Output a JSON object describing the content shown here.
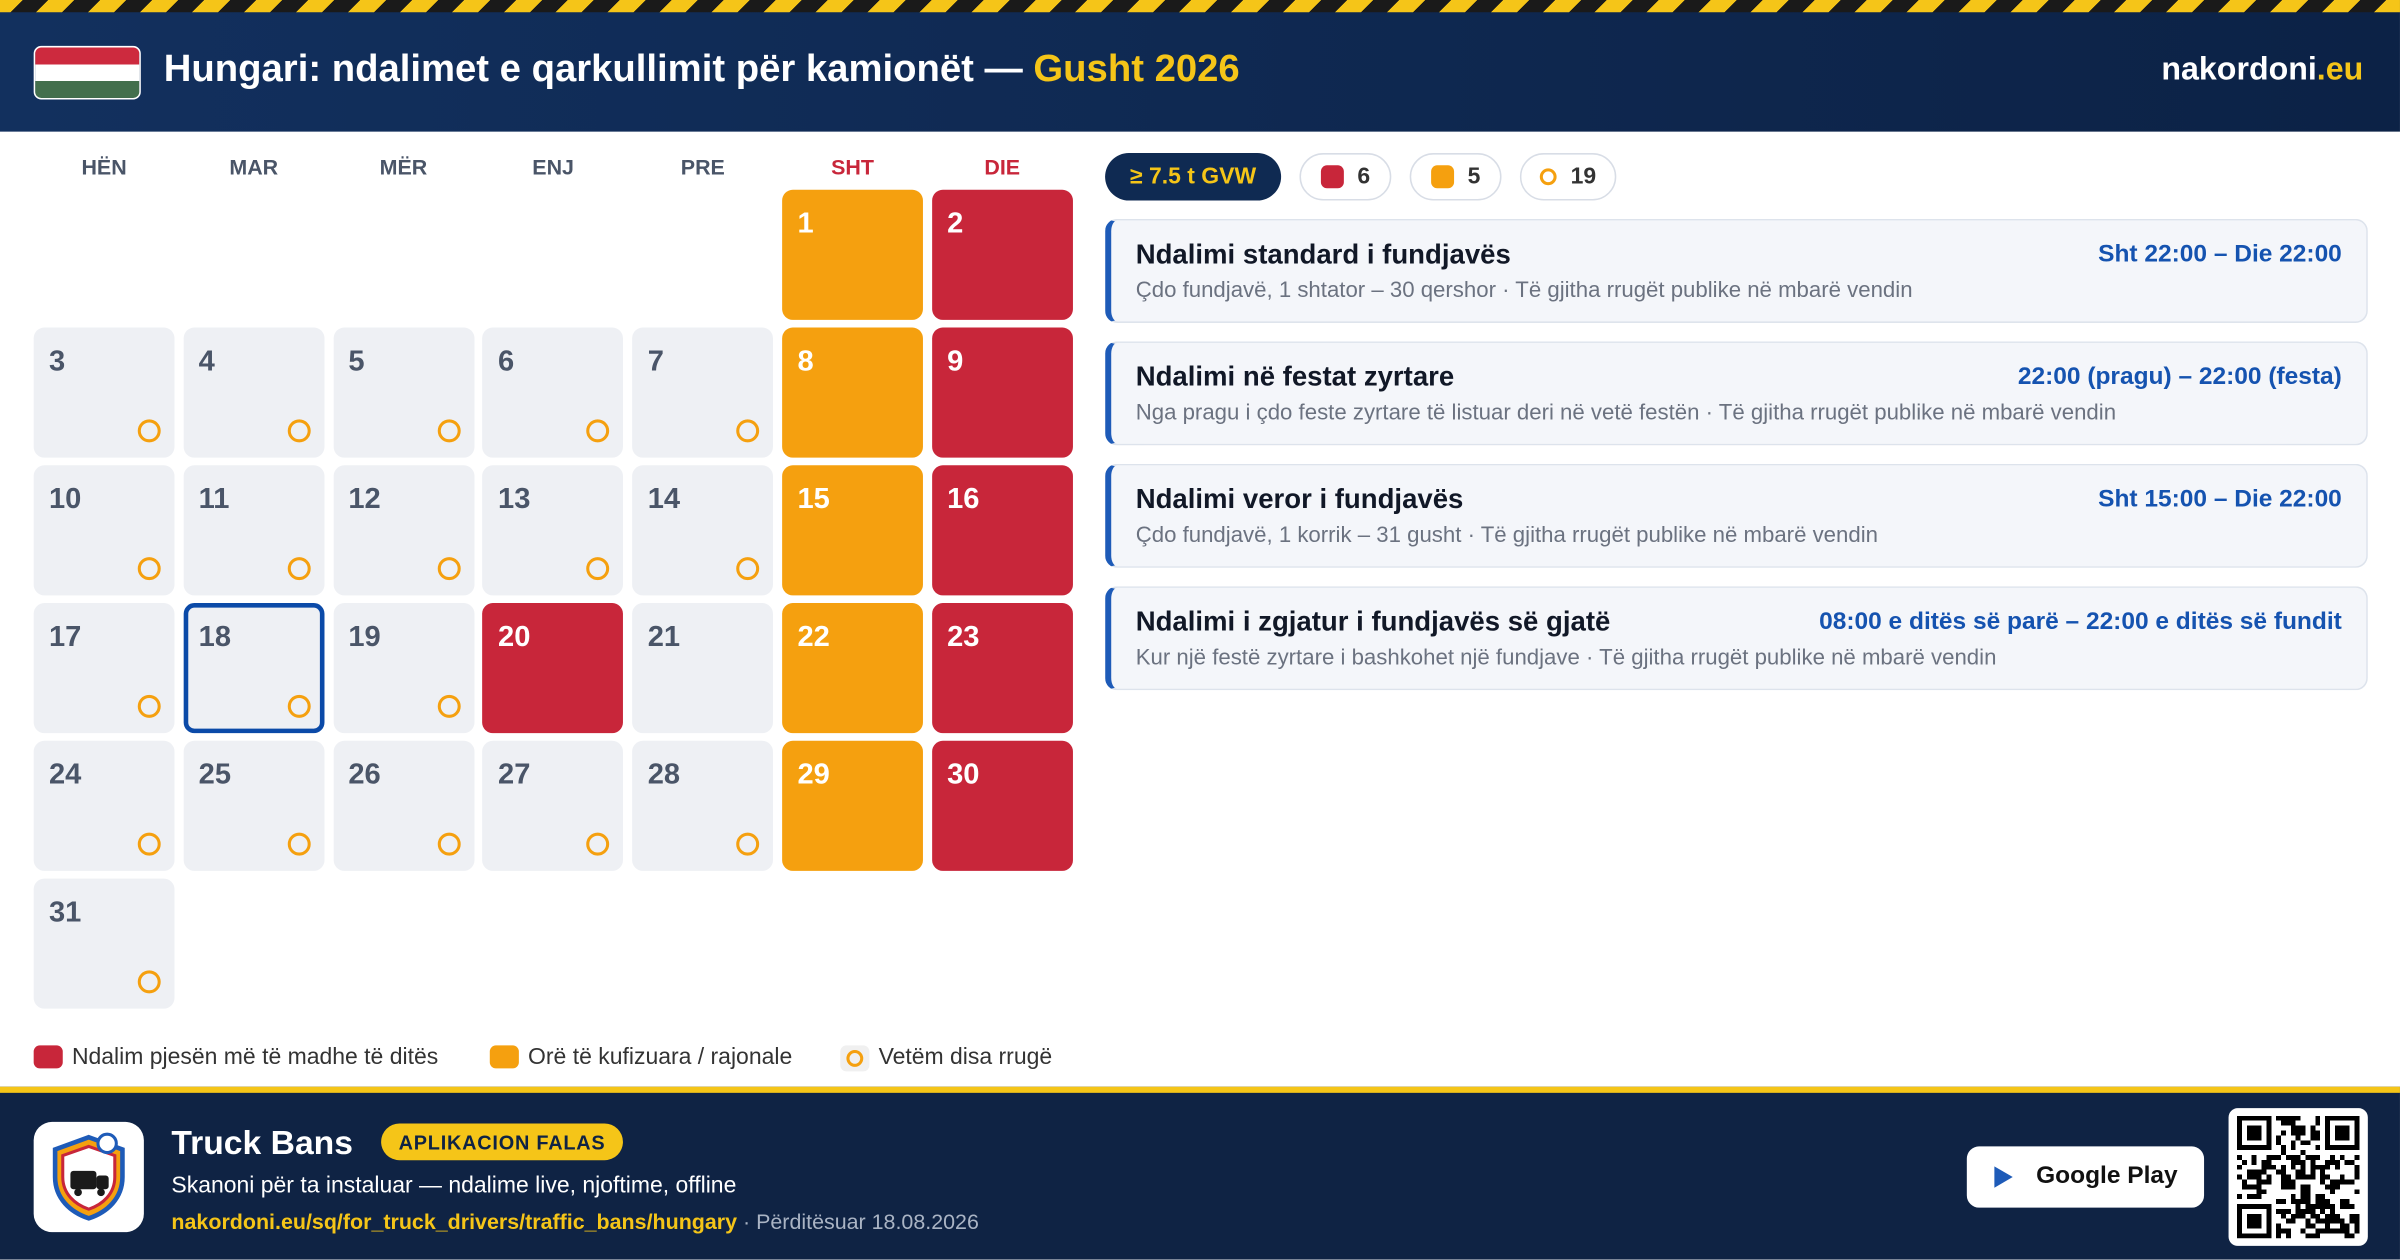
{
  "header": {
    "title": "Hungari: ndalimet e qarkullimit për kamionët —",
    "month": "Gusht 2026",
    "brand": "nakordoni",
    "brand_tld": ".eu"
  },
  "calendar": {
    "weekdays": [
      "HËN",
      "MAR",
      "MËR",
      "ENJ",
      "PRE",
      "SHT",
      "DIE"
    ],
    "days": [
      null,
      null,
      null,
      null,
      null,
      {
        "day": 1,
        "kind": "partial"
      },
      {
        "day": 2,
        "kind": "full"
      },
      {
        "day": 3,
        "kind": "some"
      },
      {
        "day": 4,
        "kind": "some"
      },
      {
        "day": 5,
        "kind": "some"
      },
      {
        "day": 6,
        "kind": "some"
      },
      {
        "day": 7,
        "kind": "some"
      },
      {
        "day": 8,
        "kind": "partial"
      },
      {
        "day": 9,
        "kind": "full"
      },
      {
        "day": 10,
        "kind": "some"
      },
      {
        "day": 11,
        "kind": "some"
      },
      {
        "day": 12,
        "kind": "some"
      },
      {
        "day": 13,
        "kind": "some"
      },
      {
        "day": 14,
        "kind": "some"
      },
      {
        "day": 15,
        "kind": "partial"
      },
      {
        "day": 16,
        "kind": "full"
      },
      {
        "day": 17,
        "kind": "some"
      },
      {
        "day": 18,
        "kind": "some",
        "today": true
      },
      {
        "day": 19,
        "kind": "some"
      },
      {
        "day": 20,
        "kind": "full"
      },
      {
        "day": 21,
        "kind": "none"
      },
      {
        "day": 22,
        "kind": "partial"
      },
      {
        "day": 23,
        "kind": "full"
      },
      {
        "day": 24,
        "kind": "some"
      },
      {
        "day": 25,
        "kind": "some"
      },
      {
        "day": 26,
        "kind": "some"
      },
      {
        "day": 27,
        "kind": "some"
      },
      {
        "day": 28,
        "kind": "some"
      },
      {
        "day": 29,
        "kind": "partial"
      },
      {
        "day": 30,
        "kind": "full"
      },
      {
        "day": 31,
        "kind": "some"
      }
    ]
  },
  "filters": {
    "weight": "≥ 7.5 t GVW",
    "counts": [
      {
        "kind": "full",
        "count": 6
      },
      {
        "kind": "partial",
        "count": 5
      },
      {
        "kind": "some",
        "count": 19
      }
    ]
  },
  "rules": [
    {
      "title": "Ndalimi standard i fundjavës",
      "time": "Sht 22:00 – Die 22:00",
      "description": "Çdo fundjavë, 1 shtator – 30 qershor · Të gjitha rrugët publike në mbarë vendin"
    },
    {
      "title": "Ndalimi në festat zyrtare",
      "time": "22:00 (pragu) – 22:00 (festa)",
      "description": "Nga pragu i çdo feste zyrtare të listuar deri në vetë festën · Të gjitha rrugët publike në mbarë vendin"
    },
    {
      "title": "Ndalimi veror i fundjavës",
      "time": "Sht 15:00 – Die 22:00",
      "description": "Çdo fundjavë, 1 korrik – 31 gusht · Të gjitha rrugët publike në mbarë vendin"
    },
    {
      "title": "Ndalimi i zgjatur i fundjavës së gjatë",
      "time": "08:00 e ditës së parë – 22:00 e ditës së fundit",
      "description": "Kur një festë zyrtare i bashkohet një fundjave · Të gjitha rrugët publike në mbarë vendin"
    }
  ],
  "legend": [
    {
      "kind": "full",
      "label": "Ndalim pjesën më të madhe të ditës"
    },
    {
      "kind": "partial",
      "label": "Orë të kufizuara / rajonale"
    },
    {
      "kind": "some",
      "label": "Vetëm disa rrugë"
    }
  ],
  "footer": {
    "app": "Truck Bans",
    "badge": "APLIKACION FALAS",
    "tagline": "Skanoni për ta instaluar — ndalime live, njoftime, offline",
    "url": "nakordoni.eu/sq/for_truck_drivers/traffic_bans/hungary",
    "updated": "· Përditësuar 18.08.2026",
    "store": "Google Play"
  }
}
